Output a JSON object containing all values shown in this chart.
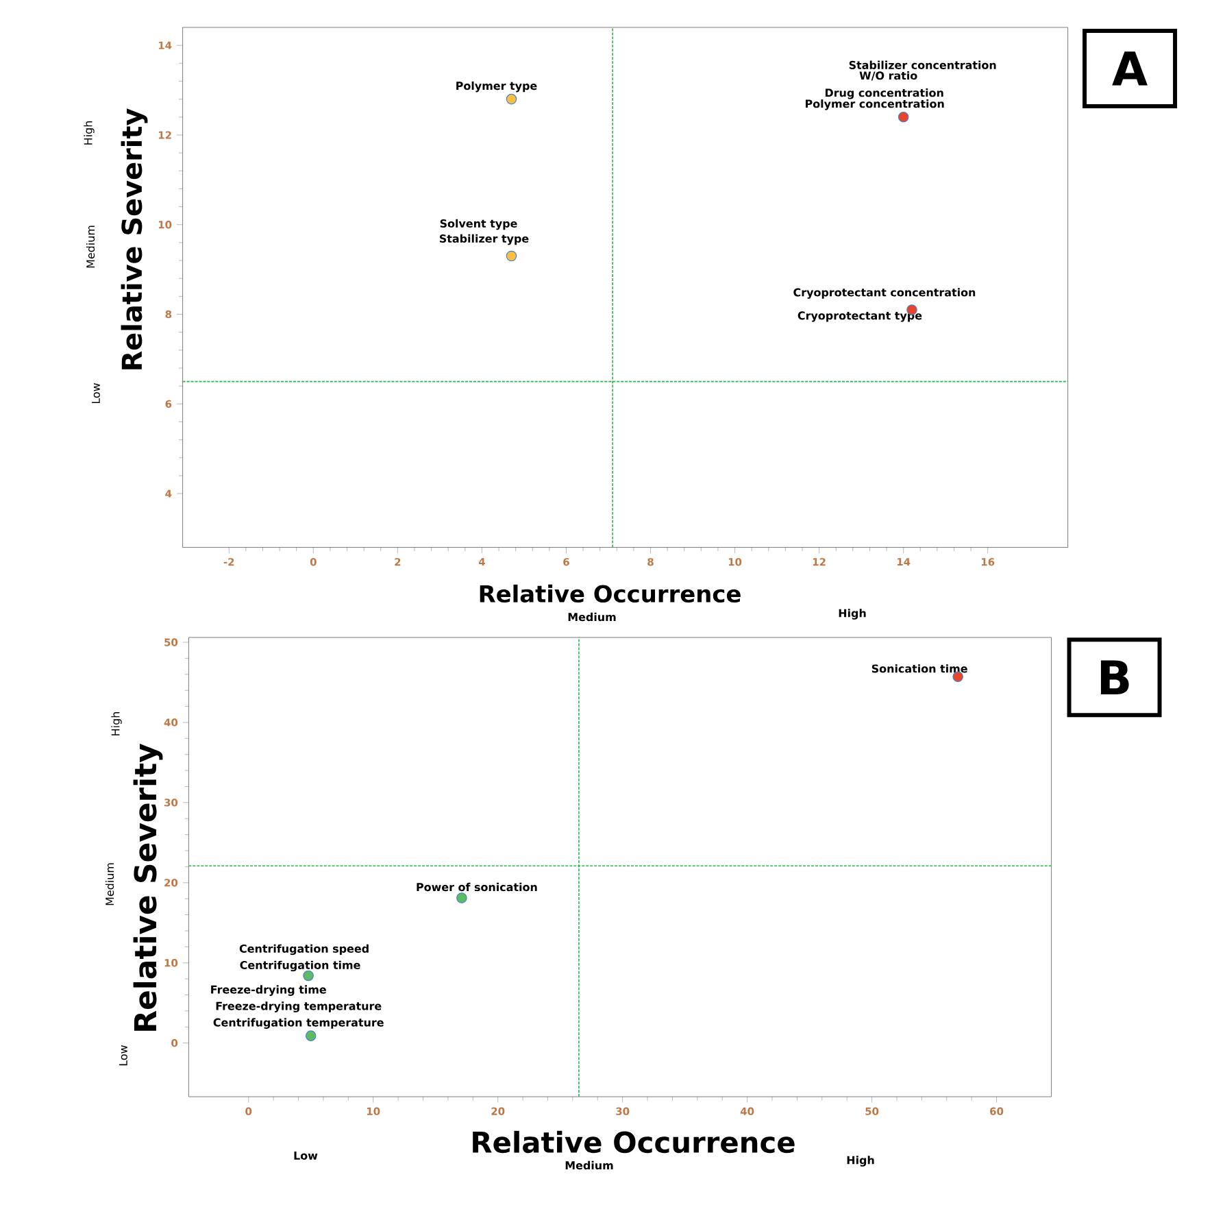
{
  "chart_data": [
    {
      "type": "scatter",
      "xlabel": "Relative Occurrence",
      "ylabel": "Relative Severity",
      "marker": "circle",
      "grid": false,
      "x": [
        4.7,
        4.7,
        14.0,
        14.2
      ],
      "values": [
        12.8,
        9.3,
        12.4,
        8.1
      ],
      "colors": [
        "#f9bf45",
        "#f9bf45",
        "#e8452c",
        "#e8452c"
      ],
      "xlim": [
        -3.1,
        17.9
      ],
      "xticks": [
        -2,
        0,
        2,
        4,
        6,
        8,
        10,
        12,
        14,
        16
      ],
      "ylim": [
        2.8,
        14.4
      ],
      "yticks": [
        4,
        6,
        8,
        10,
        12,
        14
      ],
      "ref_lines": [
        {
          "axis": "x",
          "value": 7.1,
          "color": "#2db34a",
          "line_style": "dashed"
        },
        {
          "axis": "y",
          "value": 6.5,
          "color": "#2db34a",
          "line_style": "dashed"
        }
      ],
      "annotations": [
        {
          "text": "Polymer type",
          "x": 4.7,
          "y": 12.8
        },
        {
          "text": "Solvent type",
          "x": 4.7,
          "y": 9.3
        },
        {
          "text": "Stabilizer type",
          "x": 4.7,
          "y": 9.3
        },
        "Stabilizer concentration",
        "W/O ratio",
        {
          "text": "Drug concentration",
          "x": 14.0,
          "y": 12.4
        },
        {
          "text": "Polymer concentration",
          "x": 14.0,
          "y": 12.4
        },
        {
          "text": "Cryoprotectant concentration",
          "x": 14.2,
          "y": 8.1
        },
        {
          "text": "Cryoprotectant type",
          "x": 14.2,
          "y": 8.1
        },
        "High",
        "Medium",
        "Low",
        "Medium",
        "High",
        "A"
      ]
    },
    {
      "type": "scatter",
      "xlabel": "Relative  Occurrence",
      "ylabel": "Relative Severity",
      "marker": "circle",
      "grid": false,
      "x": [
        56.9,
        17.1,
        4.8,
        5.0
      ],
      "values": [
        45.7,
        18.1,
        8.4,
        0.9
      ],
      "colors": [
        "#e8452c",
        "#5dbb63",
        "#5dbb63",
        "#5dbb63"
      ],
      "xlim": [
        -4.8,
        64.4
      ],
      "xticks": [
        0,
        10,
        20,
        30,
        40,
        50,
        60
      ],
      "ylim": [
        -6.7,
        50.6
      ],
      "yticks": [
        0,
        10,
        20,
        30,
        40,
        50
      ],
      "ref_lines": [
        {
          "axis": "x",
          "value": 26.5,
          "color": "#2db34a",
          "line_style": "dashed"
        },
        {
          "axis": "y",
          "value": 22.1,
          "color": "#2db34a",
          "line_style": "dashed"
        }
      ],
      "annotations": [
        {
          "text": "Sonication time",
          "x": 56.9,
          "y": 45.7
        },
        {
          "text": "Power of sonication",
          "x": 17.1,
          "y": 18.1
        },
        {
          "text": "Centrifugation speed",
          "x": 4.8,
          "y": 8.4
        },
        {
          "text": "Centrifugation time",
          "x": 4.8,
          "y": 8.4
        },
        "Freeze-drying time",
        {
          "text": "Freeze-drying temperature",
          "x": 5.0,
          "y": 0.9
        },
        {
          "text": "Centrifugation temperature",
          "x": 5.0,
          "y": 0.9
        },
        "High",
        "Medium",
        "Low",
        "Low",
        "Medium",
        "High",
        "B"
      ]
    }
  ]
}
